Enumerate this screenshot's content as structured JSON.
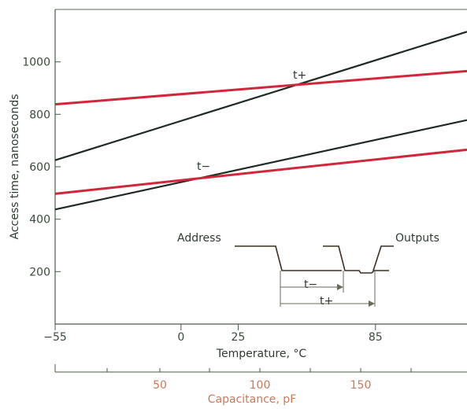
{
  "chart_data": {
    "type": "line",
    "title": "",
    "xlabel": "Temperature, °C",
    "ylabel": "Access time, nanoseconds",
    "xlim": [
      -55,
      125
    ],
    "ylim": [
      0,
      1200
    ],
    "x_ticks": [
      "-55",
      "0",
      "25",
      "85"
    ],
    "y_ticks": [
      "200",
      "400",
      "600",
      "800",
      "1000"
    ],
    "secondary_axis": {
      "label": "Capacitance, pF",
      "ticks": [
        "50",
        "100",
        "150"
      ],
      "color": "#c97a5a"
    },
    "series": [
      {
        "label": "t+",
        "color": "#1e2a22",
        "x": [
          -55,
          125
        ],
        "y": [
          625,
          1115
        ]
      },
      {
        "label": "t+",
        "color": "#d0283a",
        "x": [
          -55,
          125
        ],
        "y": [
          838,
          965
        ]
      },
      {
        "label": "t−",
        "color": "#1e2a22",
        "x": [
          -55,
          125
        ],
        "y": [
          437,
          778
        ]
      },
      {
        "label": "t−",
        "color": "#d0283a",
        "x": [
          -55,
          125
        ],
        "y": [
          497,
          665
        ]
      }
    ],
    "annotations": {
      "t_plus": "t+",
      "t_minus": "t−",
      "address": "Address",
      "outputs": "Outputs",
      "inset_t_minus": "t−",
      "inset_t_plus": "t+"
    }
  }
}
